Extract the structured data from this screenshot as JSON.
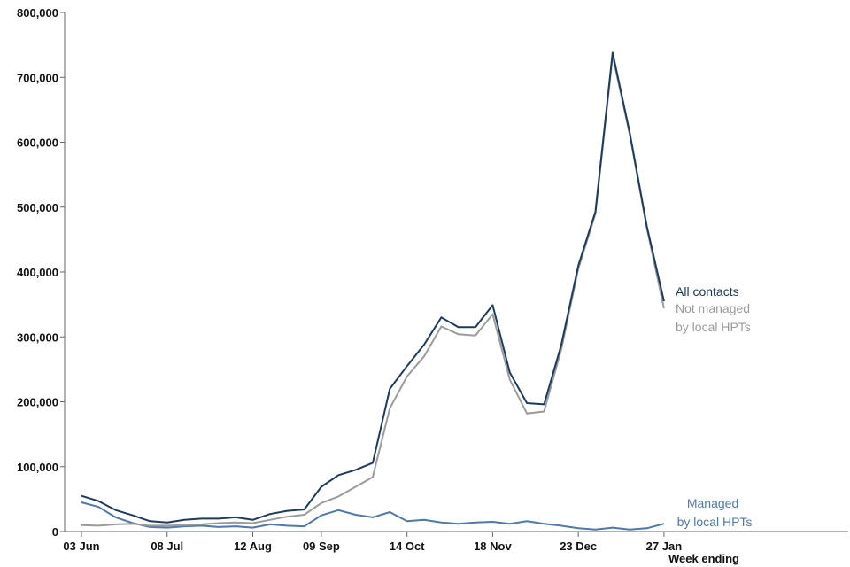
{
  "chart_data": {
    "type": "line",
    "title": "",
    "xlabel": "Week ending",
    "ylabel": "",
    "ylim": [
      0,
      800000
    ],
    "yticks": [
      0,
      100000,
      200000,
      300000,
      400000,
      500000,
      600000,
      700000,
      800000
    ],
    "ytick_labels": [
      "0",
      "100,000",
      "200,000",
      "300,000",
      "400,000",
      "500,000",
      "600,000",
      "700,000",
      "800,000"
    ],
    "x_tick_labels": [
      {
        "week": 0,
        "label": "03 Jun"
      },
      {
        "week": 5,
        "label": "08 Jul"
      },
      {
        "week": 10,
        "label": "12 Aug"
      },
      {
        "week": 14,
        "label": "09 Sep"
      },
      {
        "week": 19,
        "label": "14 Oct"
      },
      {
        "week": 24,
        "label": "18 Nov"
      },
      {
        "week": 29,
        "label": "23 Dec"
      },
      {
        "week": 34,
        "label": "27 Jan"
      }
    ],
    "grid": false,
    "legend": "inline-right",
    "series": [
      {
        "name": "All contacts",
        "color": "#1b3b63",
        "values": [
          55000,
          47000,
          33000,
          25000,
          16000,
          14000,
          18000,
          20000,
          20000,
          22000,
          18000,
          27000,
          32000,
          34000,
          69000,
          87000,
          95000,
          106000,
          220000,
          255000,
          288000,
          330000,
          315000,
          315000,
          349000,
          245000,
          198000,
          196000,
          287000,
          410000,
          493000,
          738000,
          615000,
          470000,
          355000
        ]
      },
      {
        "name": "Not managed by local HPTs",
        "label_lines": [
          "Not managed",
          "by local HPTs"
        ],
        "color": "#9b9b9b",
        "values": [
          10000,
          9000,
          11000,
          12000,
          9000,
          9000,
          10000,
          11000,
          13000,
          14000,
          13000,
          18000,
          23000,
          26000,
          44000,
          54000,
          69000,
          84000,
          190000,
          239000,
          270000,
          316000,
          304000,
          302000,
          335000,
          234000,
          182000,
          185000,
          280000,
          405000,
          490000,
          733000,
          612000,
          467000,
          344000
        ]
      },
      {
        "name": "Managed by local HPTs",
        "label_lines": [
          "Managed",
          "by local HPTs"
        ],
        "color": "#4a78b8",
        "values": [
          45000,
          38000,
          22000,
          13000,
          7000,
          6000,
          8000,
          9000,
          7000,
          8000,
          6000,
          11000,
          9000,
          8000,
          25000,
          33000,
          26000,
          22000,
          30000,
          16000,
          18000,
          14000,
          12000,
          14000,
          15000,
          12000,
          16000,
          12000,
          9000,
          5000,
          3000,
          6000,
          3000,
          5000,
          12000
        ]
      }
    ]
  }
}
